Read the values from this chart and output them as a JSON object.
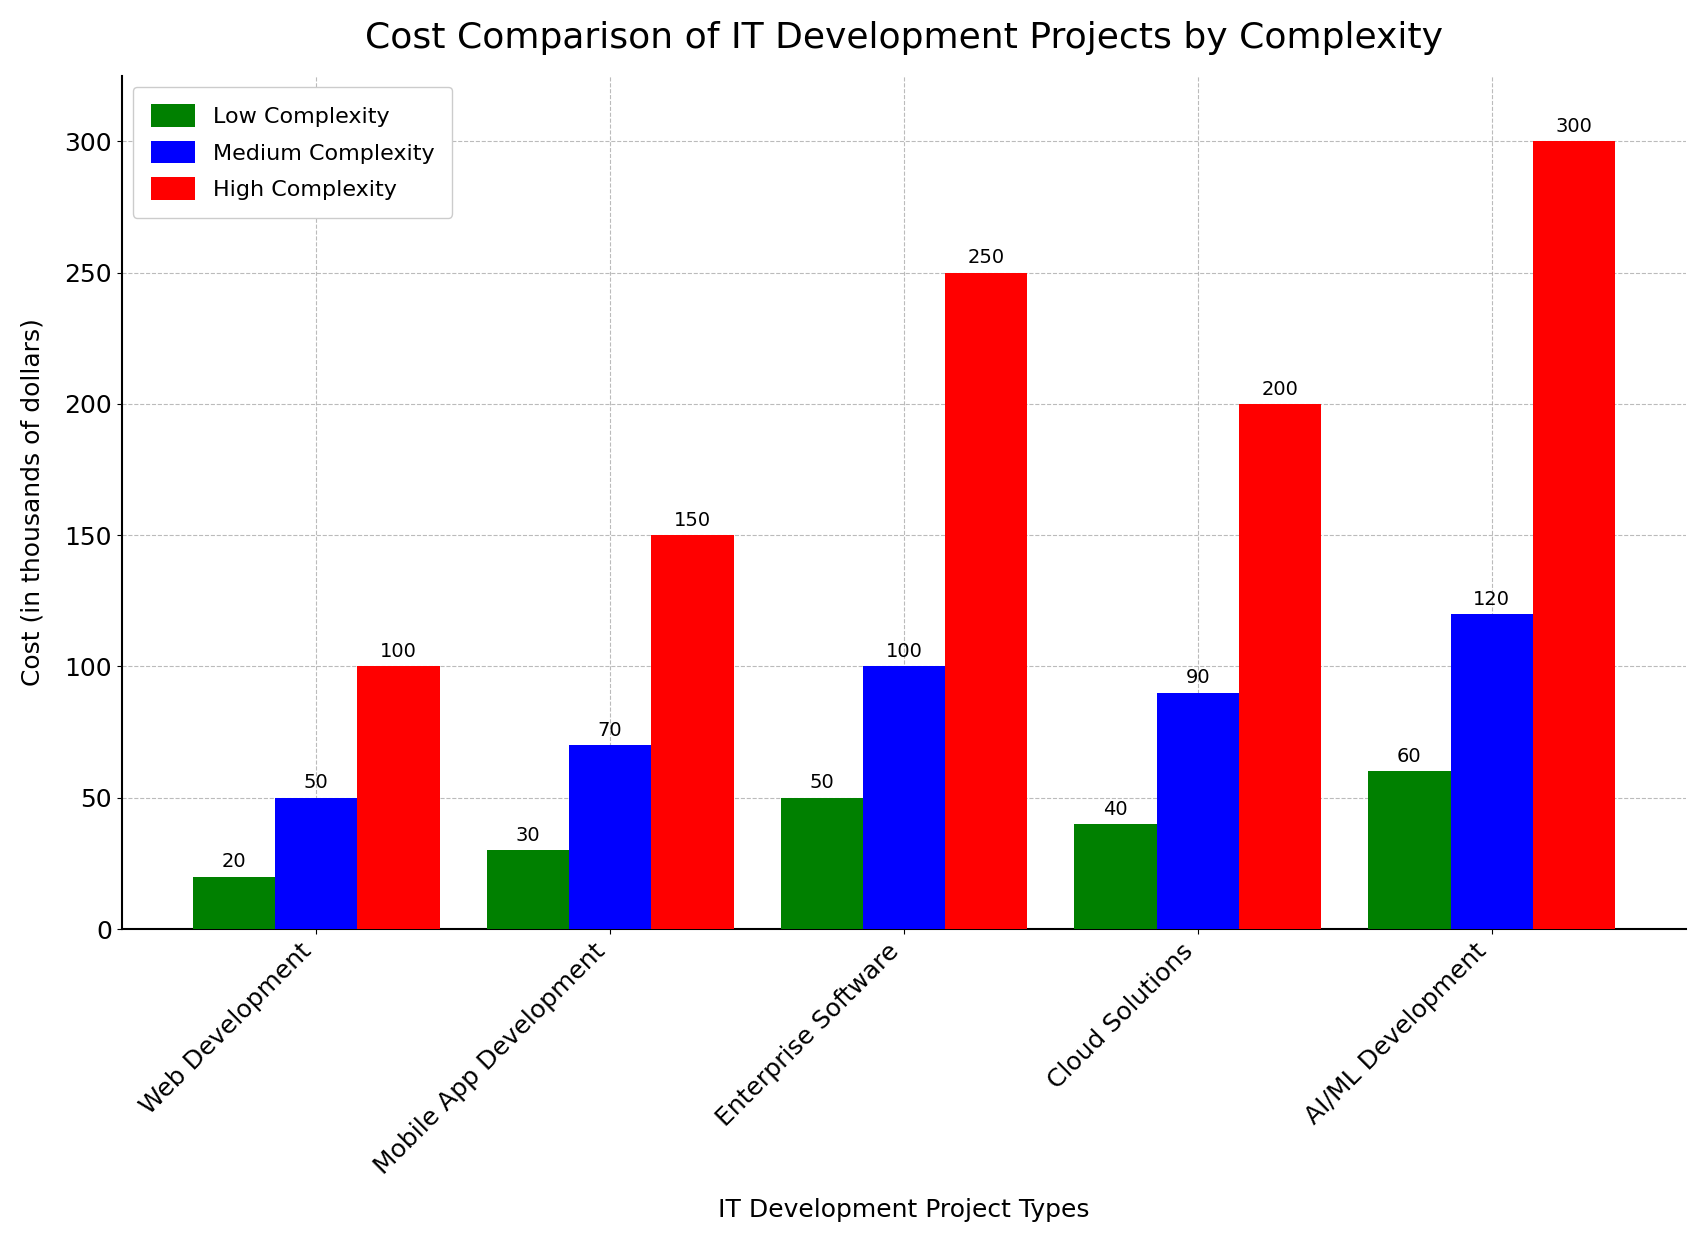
{
  "title": "Cost Comparison of IT Development Projects by Complexity",
  "xlabel": "IT Development Project Types",
  "ylabel": "Cost (in thousands of dollars)",
  "categories": [
    "Web Development",
    "Mobile App Development",
    "Enterprise Software",
    "Cloud Solutions",
    "AI/ML Development"
  ],
  "series": [
    {
      "label": "Low Complexity",
      "color": "#008000",
      "values": [
        20,
        30,
        50,
        40,
        60
      ]
    },
    {
      "label": "Medium Complexity",
      "color": "#0000FF",
      "values": [
        50,
        70,
        100,
        90,
        120
      ]
    },
    {
      "label": "High Complexity",
      "color": "#FF0000",
      "values": [
        100,
        150,
        250,
        200,
        300
      ]
    }
  ],
  "ylim": [
    0,
    325
  ],
  "yticks": [
    0,
    50,
    100,
    150,
    200,
    250,
    300
  ],
  "bar_width": 0.28,
  "title_fontsize": 26,
  "label_fontsize": 18,
  "tick_fontsize": 18,
  "legend_fontsize": 16,
  "annotation_fontsize": 14,
  "grid_color": "#aaaaaa",
  "grid_linestyle": "--",
  "grid_alpha": 0.8,
  "background_color": "#ffffff",
  "legend_loc": "upper left",
  "xtick_rotation": 45,
  "xlabel_fontsize": 18,
  "ylabel_fontsize": 18
}
